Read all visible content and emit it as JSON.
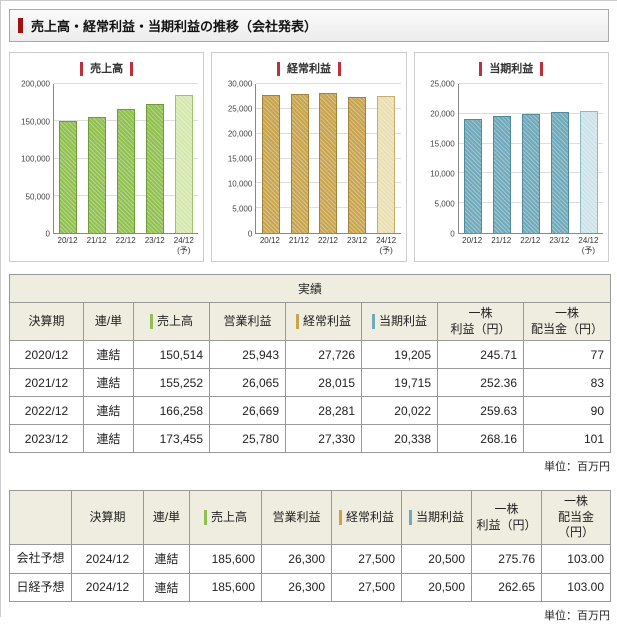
{
  "page": {
    "title": "売上高・経常利益・当期利益の推移（会社発表）"
  },
  "chart_data": [
    {
      "type": "bar",
      "title": "売上高",
      "categories": [
        "20/12",
        "21/12",
        "22/12",
        "23/12",
        "24/12\n(予)"
      ],
      "values": [
        150514,
        155252,
        166258,
        173455,
        185600
      ],
      "ylim": [
        0,
        200000
      ],
      "ytick_labels": [
        "0",
        "50,000",
        "100,000",
        "150,000",
        "200,000"
      ],
      "grid": true,
      "legend": "none",
      "bar_color": "#90c050",
      "bar_border": "#6f9c3a",
      "forecast_color": "#d4e8ae",
      "forecast_border": "#9cc46e",
      "title_accent": "#c0303c"
    },
    {
      "type": "bar",
      "title": "経常利益",
      "categories": [
        "20/12",
        "21/12",
        "22/12",
        "23/12",
        "24/12\n(予)"
      ],
      "values": [
        27726,
        28015,
        28281,
        27330,
        27500
      ],
      "ylim": [
        0,
        30000
      ],
      "ytick_labels": [
        "0",
        "5,000",
        "10,000",
        "15,000",
        "20,000",
        "25,000",
        "30,000"
      ],
      "grid": true,
      "legend": "none",
      "bar_color": "#c8a44e",
      "bar_border": "#a3823a",
      "forecast_color": "#e9dfb2",
      "forecast_border": "#c4ae6e",
      "title_accent": "#c0303c"
    },
    {
      "type": "bar",
      "title": "当期利益",
      "categories": [
        "20/12",
        "21/12",
        "22/12",
        "23/12",
        "24/12\n(予)"
      ],
      "values": [
        19205,
        19715,
        20022,
        20338,
        20500
      ],
      "ylim": [
        0,
        25000
      ],
      "ytick_labels": [
        "0",
        "5,000",
        "10,000",
        "15,000",
        "20,000",
        "25,000"
      ],
      "grid": true,
      "legend": "none",
      "bar_color": "#6fa9ba",
      "bar_border": "#538a9a",
      "forecast_color": "#cde3e8",
      "forecast_border": "#8fb9c4",
      "title_accent": "#c0303c"
    }
  ],
  "results_table": {
    "caption": "実績",
    "columns": [
      {
        "label": "決算期",
        "accent": null
      },
      {
        "label": "連/単",
        "accent": null
      },
      {
        "label": "売上高",
        "accent": "#90c050"
      },
      {
        "label": "営業利益",
        "accent": null
      },
      {
        "label": "経常利益",
        "accent": "#c8a44e"
      },
      {
        "label": "当期利益",
        "accent": "#6fa9ba"
      },
      {
        "label": "一株\n利益（円）",
        "accent": null
      },
      {
        "label": "一株\n配当金（円）",
        "accent": null
      }
    ],
    "rows": [
      [
        "2020/12",
        "連結",
        "150,514",
        "25,943",
        "27,726",
        "19,205",
        "245.71",
        "77"
      ],
      [
        "2021/12",
        "連結",
        "155,252",
        "26,065",
        "28,015",
        "19,715",
        "252.36",
        "83"
      ],
      [
        "2022/12",
        "連結",
        "166,258",
        "26,669",
        "28,281",
        "20,022",
        "259.63",
        "90"
      ],
      [
        "2023/12",
        "連結",
        "173,455",
        "25,780",
        "27,330",
        "20,338",
        "268.16",
        "101"
      ]
    ],
    "unit_note": "単位：百万円"
  },
  "forecast_table": {
    "columns": [
      {
        "label": "決算期",
        "accent": null
      },
      {
        "label": "連/単",
        "accent": null
      },
      {
        "label": "売上高",
        "accent": "#90c050"
      },
      {
        "label": "営業利益",
        "accent": null
      },
      {
        "label": "経常利益",
        "accent": "#c8a44e"
      },
      {
        "label": "当期利益",
        "accent": "#6fa9ba"
      },
      {
        "label": "一株\n利益（円）",
        "accent": null
      },
      {
        "label": "一株\n配当金（円）",
        "accent": null
      }
    ],
    "rows": [
      {
        "label": "会社予想",
        "cells": [
          "2024/12",
          "連結",
          "185,600",
          "26,300",
          "27,500",
          "20,500",
          "275.76",
          "103.00"
        ]
      },
      {
        "label": "日経予想",
        "cells": [
          "2024/12",
          "連結",
          "185,600",
          "26,300",
          "27,500",
          "20,500",
          "262.65",
          "103.00"
        ]
      }
    ],
    "unit_note": "単位：百万円"
  }
}
